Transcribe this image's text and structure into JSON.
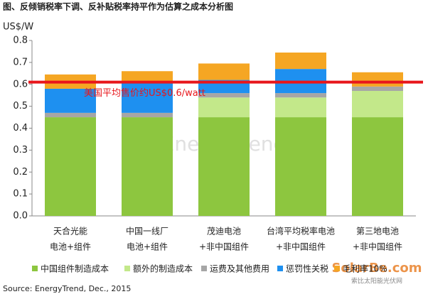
{
  "chart_data": {
    "type": "stacked_bar",
    "title": "图、反倾销税率下调、反补贴税率持平作为估算之成本分析图",
    "y_label": "US$/W",
    "categories": [
      [
        "天合光能",
        "电池+组件"
      ],
      [
        "中国一线厂",
        "电池+组件"
      ],
      [
        "茂迪电池",
        "+非中国组件"
      ],
      [
        "台湾平均税率电池",
        "+非中国组件"
      ],
      [
        "第三地电池",
        "+非中国组件"
      ]
    ],
    "series": [
      {
        "name": "中国组件制造成本",
        "color": "#8dc63f",
        "values": [
          0.45,
          0.45,
          0.45,
          0.45,
          0.45
        ]
      },
      {
        "name": "额外的制造成本",
        "color": "#c3e88a",
        "values": [
          0,
          0,
          0.09,
          0.09,
          0.12
        ]
      },
      {
        "name": "运费及其他费用",
        "color": "#a6a6a6",
        "values": [
          0.02,
          0.02,
          0.02,
          0.02,
          0.02
        ]
      },
      {
        "name": "惩罚性关税",
        "color": "#1e90f0",
        "values": [
          0.11,
          0.14,
          0.06,
          0.11,
          0
        ]
      },
      {
        "name": "毛利率10%",
        "color": "#f5a623",
        "values": [
          0.065,
          0.05,
          0.075,
          0.075,
          0.065
        ]
      }
    ],
    "ylim": [
      0,
      0.8
    ],
    "yticks": [
      {
        "value": 0,
        "label": "0.0"
      },
      0.1,
      0.2,
      0.3,
      0.4,
      0.5,
      0.6,
      0.7,
      0.8
    ],
    "reference_line": {
      "value": 0.61,
      "color": "#e8161b",
      "label": "美国平均售价约US$0.6/watt"
    },
    "source": "Source: EnergyTrend, Dec., 2015",
    "watermarks": [
      "EnergyTrend",
      "SolarBe.com",
      "索比太阳能光伏网"
    ]
  }
}
